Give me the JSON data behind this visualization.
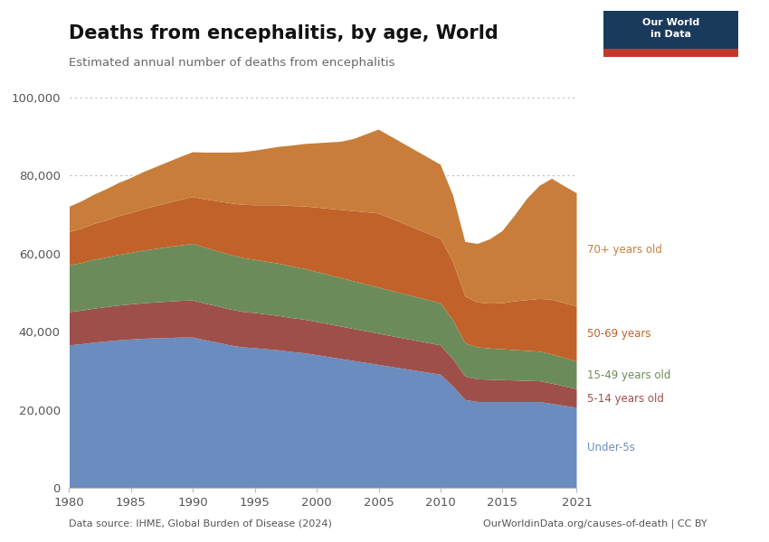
{
  "title": "Deaths from encephalitis, by age, World",
  "subtitle": "Estimated annual number of deaths from encephalitis",
  "data_source": "Data source: IHME, Global Burden of Disease (2024)",
  "url": "OurWorldinData.org/causes-of-death | CC BY",
  "years": [
    1980,
    1981,
    1982,
    1983,
    1984,
    1985,
    1986,
    1987,
    1988,
    1989,
    1990,
    1991,
    1992,
    1993,
    1994,
    1995,
    1996,
    1997,
    1998,
    1999,
    2000,
    2001,
    2002,
    2003,
    2004,
    2005,
    2006,
    2007,
    2008,
    2009,
    2010,
    2011,
    2012,
    2013,
    2014,
    2015,
    2016,
    2017,
    2018,
    2019,
    2020,
    2021
  ],
  "under5": [
    36500,
    36800,
    37200,
    37500,
    37800,
    38000,
    38200,
    38300,
    38400,
    38500,
    38500,
    37800,
    37200,
    36500,
    36000,
    35800,
    35500,
    35200,
    34800,
    34500,
    34000,
    33500,
    33000,
    32500,
    32000,
    31500,
    31000,
    30500,
    30000,
    29500,
    29000,
    26000,
    22500,
    22000,
    22000,
    22000,
    22000,
    22000,
    22000,
    21500,
    21000,
    20500
  ],
  "age5_14": [
    8500,
    8600,
    8700,
    8800,
    8900,
    9000,
    9100,
    9200,
    9300,
    9400,
    9500,
    9400,
    9300,
    9200,
    9100,
    9000,
    8900,
    8800,
    8700,
    8600,
    8500,
    8400,
    8300,
    8200,
    8100,
    8000,
    7900,
    7800,
    7700,
    7600,
    7500,
    7000,
    6000,
    5800,
    5700,
    5600,
    5500,
    5400,
    5300,
    5200,
    5000,
    4800
  ],
  "age15_49": [
    12000,
    12200,
    12500,
    12700,
    13000,
    13200,
    13500,
    13700,
    14000,
    14200,
    14500,
    14300,
    14100,
    14000,
    13800,
    13600,
    13500,
    13400,
    13200,
    13000,
    12800,
    12600,
    12400,
    12200,
    12000,
    11800,
    11600,
    11400,
    11200,
    11000,
    10800,
    10000,
    8500,
    8200,
    8000,
    7900,
    7800,
    7700,
    7600,
    7500,
    7300,
    7000
  ],
  "age50_69": [
    8500,
    8800,
    9200,
    9500,
    9900,
    10200,
    10600,
    11000,
    11300,
    11700,
    12000,
    12400,
    12800,
    13200,
    13600,
    14000,
    14500,
    15000,
    15500,
    16000,
    16500,
    17000,
    17500,
    18000,
    18500,
    19000,
    18500,
    18000,
    17500,
    17000,
    16500,
    15000,
    12000,
    11500,
    11500,
    11800,
    12500,
    13000,
    13500,
    14000,
    14000,
    14200
  ],
  "age70plus": [
    6500,
    7000,
    7500,
    8000,
    8500,
    9000,
    9500,
    10000,
    10500,
    11000,
    11500,
    12000,
    12500,
    13000,
    13500,
    14000,
    14500,
    15000,
    15500,
    16000,
    16500,
    17000,
    17500,
    18500,
    20000,
    21500,
    21000,
    20500,
    20000,
    19500,
    19000,
    17000,
    14000,
    15000,
    16500,
    18500,
    22000,
    26000,
    29000,
    31000,
    30000,
    29000
  ],
  "colors": {
    "under5": "#6b8cbf",
    "age5_14": "#9e4f4a",
    "age15_49": "#6b8c5a",
    "age50_69": "#c0622a",
    "age70plus": "#c87e3a"
  },
  "label_colors": {
    "under5": "#6b8cbf",
    "age5_14": "#9e4f4a",
    "age15_49": "#6b8c5a",
    "age50_69": "#c0622a",
    "age70plus": "#c87e3a"
  },
  "labels": {
    "under5": "Under-5s",
    "age5_14": "5-14 years old",
    "age15_49": "15-49 years old",
    "age50_69": "50-69 years",
    "age70plus": "70+ years old"
  },
  "ylim": [
    0,
    100000
  ],
  "yticks": [
    0,
    20000,
    40000,
    60000,
    80000,
    100000
  ],
  "ytick_labels": [
    "0",
    "20,000",
    "40,000",
    "60,000",
    "80,000",
    "100,000"
  ],
  "xticks": [
    1980,
    1985,
    1990,
    1995,
    2000,
    2005,
    2010,
    2015,
    2021
  ],
  "xtick_labels": [
    "1980",
    "1985",
    "1990",
    "1995",
    "2000",
    "2005",
    "2010",
    "2015",
    "2021"
  ],
  "background_color": "#ffffff"
}
